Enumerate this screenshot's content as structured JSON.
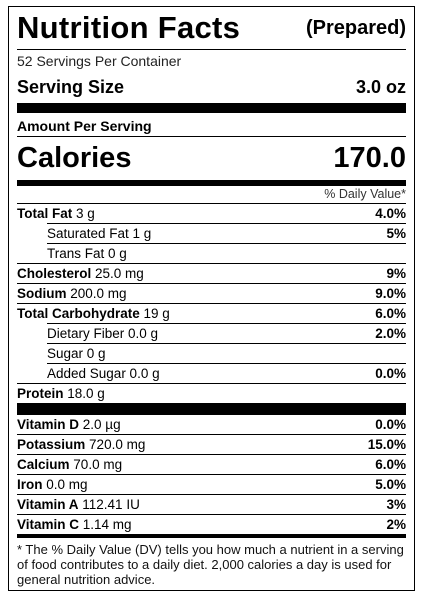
{
  "header": {
    "title": "Nutrition Facts",
    "note": "(Prepared)",
    "servings": "52 Servings Per Container",
    "serving_size_label": "Serving Size",
    "serving_size": "3.0 oz"
  },
  "calories": {
    "heading": "Amount Per Serving",
    "label": "Calories",
    "value": "170.0"
  },
  "dv_heading": "% Daily Value*",
  "nutrients": [
    {
      "name": "Total Fat",
      "amount": "3 g",
      "dv": "4.0%"
    },
    {
      "name": "Saturated Fat 1 g",
      "dv": "5%",
      "indent": true
    },
    {
      "name": "Trans Fat 0 g",
      "indent": true
    },
    {
      "name": "Cholesterol",
      "amount": "25.0 mg",
      "dv": "9%"
    },
    {
      "name": "Sodium",
      "amount": "200.0 mg",
      "dv": "9.0%"
    },
    {
      "name": "Total Carbohydrate",
      "amount": "19 g",
      "dv": "6.0%"
    },
    {
      "name": "Dietary Fiber 0.0 g",
      "dv": "2.0%",
      "indent": true
    },
    {
      "name": "Sugar 0 g",
      "indent": true
    },
    {
      "name": "Added Sugar 0.0 g",
      "dv": "0.0%",
      "indent": true
    },
    {
      "name": "Protein",
      "amount": "18.0 g"
    }
  ],
  "vitamins": [
    {
      "name": "Vitamin D",
      "amount": "2.0 µg",
      "dv": "0.0%"
    },
    {
      "name": "Potassium",
      "amount": "720.0 mg",
      "dv": "15.0%"
    },
    {
      "name": "Calcium",
      "amount": "70.0 mg",
      "dv": "6.0%"
    },
    {
      "name": "Iron",
      "amount": "0.0 mg",
      "dv": "5.0%"
    },
    {
      "name": "Vitamin A",
      "amount": "112.41 IU",
      "dv": "3%"
    },
    {
      "name": "Vitamin C",
      "amount": "1.14 mg",
      "dv": "2%"
    }
  ],
  "footnote": "* The % Daily Value (DV) tells you how much a nutrient in a serving of food contributes to a daily diet. 2,000 calories a day is used for general nutrition advice."
}
